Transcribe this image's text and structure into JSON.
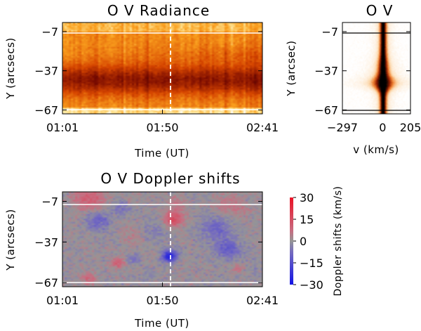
{
  "chart_data": [
    {
      "id": "radiance",
      "type": "heatmap",
      "title": "O V Radiance",
      "xlabel": "Time (UT)",
      "ylabel": "Y (arcsecs)",
      "xticks": [
        "01:01",
        "01:50",
        "02:41"
      ],
      "yticks": [
        -7,
        -37,
        -67
      ],
      "ylim": [
        -70,
        0
      ],
      "colormap": "black-red-orange-yellow-white",
      "horizontal_lines_y": [
        -10,
        -68
      ],
      "vertical_dashed_line_x": "01:50",
      "line_color": "#ffffff"
    },
    {
      "id": "profile",
      "type": "heatmap",
      "title": "O V",
      "xlabel": "v (km/s)",
      "ylabel": "Y (arcsec)",
      "xticks": [
        -297,
        0,
        205
      ],
      "xlim": [
        -297,
        205
      ],
      "yticks": [
        -7,
        -37,
        -67
      ],
      "ylim": [
        -70,
        0
      ],
      "colormap": "white-orange-black (inverted)",
      "horizontal_lines_y": [
        -10,
        -68
      ],
      "line_color": "#000000"
    },
    {
      "id": "doppler",
      "type": "heatmap",
      "title": "O V Doppler shifts",
      "xlabel": "Time (UT)",
      "ylabel": "Y (arcsecs)",
      "xticks": [
        "01:01",
        "01:50",
        "02:41"
      ],
      "yticks": [
        -7,
        -37,
        -67
      ],
      "ylim": [
        -70,
        0
      ],
      "colormap": "blue-gray-red",
      "horizontal_lines_y": [
        -10,
        -68
      ],
      "vertical_dashed_line_x": "01:50",
      "line_color": "#ffffff",
      "colorbar": {
        "label": "Doppler shifts (km/s)",
        "ticks": [
          30,
          15,
          0,
          -15,
          -30
        ],
        "range": [
          -30,
          30
        ]
      }
    }
  ]
}
